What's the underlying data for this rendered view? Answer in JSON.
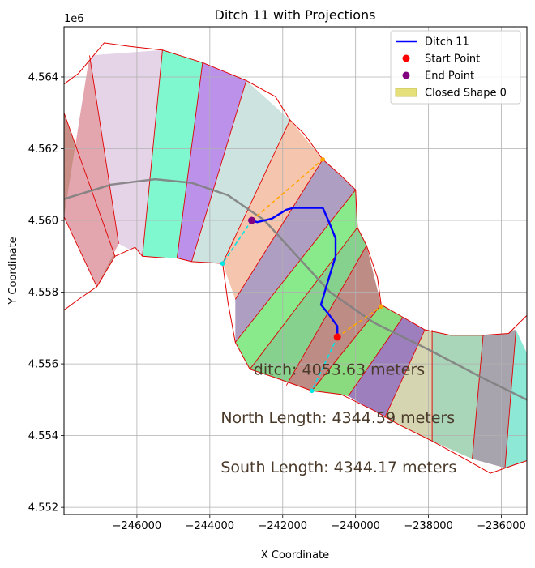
{
  "chart_data": {
    "type": "line",
    "title": "Ditch 11 with Projections",
    "xlabel": "X Coordinate",
    "ylabel": "Y Coordinate",
    "y_offset_label": "1e6",
    "xlim": [
      -248000,
      -235300
    ],
    "ylim": [
      4551800,
      4565400
    ],
    "grid": true,
    "legend_position": "top-right",
    "x_ticks": [
      {
        "value": -246000,
        "label": "−246000"
      },
      {
        "value": -244000,
        "label": "−244000"
      },
      {
        "value": -242000,
        "label": "−242000"
      },
      {
        "value": -240000,
        "label": "−240000"
      },
      {
        "value": -238000,
        "label": "−238000"
      },
      {
        "value": -236000,
        "label": "−236000"
      }
    ],
    "y_ticks": [
      {
        "value": 4552000,
        "label": "4.552"
      },
      {
        "value": 4554000,
        "label": "4.554"
      },
      {
        "value": 4556000,
        "label": "4.556"
      },
      {
        "value": 4558000,
        "label": "4.558"
      },
      {
        "value": 4560000,
        "label": "4.560"
      },
      {
        "value": 4562000,
        "label": "4.562"
      },
      {
        "value": 4564000,
        "label": "4.564"
      }
    ],
    "legend": [
      {
        "label": "Ditch 11",
        "kind": "line",
        "color": "#0000ff"
      },
      {
        "label": "Start Point",
        "kind": "dot",
        "color": "#ff0000"
      },
      {
        "label": "End Point",
        "kind": "dot",
        "color": "#800080"
      },
      {
        "label": "Closed Shape 0",
        "kind": "patch",
        "color": "#e5e07a"
      }
    ],
    "series": [
      {
        "name": "Ditch 11",
        "color": "#0000ff",
        "points": [
          [
            -242850,
            4560000
          ],
          [
            -242700,
            4559950
          ],
          [
            -242300,
            4560050
          ],
          [
            -241900,
            4560300
          ],
          [
            -241700,
            4560350
          ],
          [
            -241300,
            4560350
          ],
          [
            -240900,
            4560350
          ],
          [
            -240750,
            4560000
          ],
          [
            -240550,
            4559500
          ],
          [
            -240550,
            4559000
          ],
          [
            -240700,
            4558500
          ],
          [
            -240850,
            4558000
          ],
          [
            -240950,
            4557650
          ],
          [
            -240750,
            4557400
          ],
          [
            -240500,
            4557050
          ],
          [
            -240500,
            4556750
          ]
        ]
      }
    ],
    "centerline": {
      "color": "#808080",
      "points": [
        [
          -248000,
          4560600
        ],
        [
          -246700,
          4561000
        ],
        [
          -245500,
          4561150
        ],
        [
          -244500,
          4561050
        ],
        [
          -243500,
          4560700
        ],
        [
          -242500,
          4560000
        ],
        [
          -241600,
          4559000
        ],
        [
          -240700,
          4558000
        ],
        [
          -239500,
          4557150
        ],
        [
          -238000,
          4556400
        ],
        [
          -236500,
          4555600
        ],
        [
          -235300,
          4555000
        ]
      ]
    },
    "start_point": {
      "x": -240500,
      "y": 4556750,
      "color": "#ff0000"
    },
    "end_point": {
      "x": -242850,
      "y": 4560000,
      "color": "#800080"
    },
    "projections": [
      {
        "color": "#ffa500",
        "points": [
          [
            -242850,
            4560000
          ],
          [
            -240900,
            4561700
          ]
        ]
      },
      {
        "color": "#00e5e5",
        "points": [
          [
            -242850,
            4560000
          ],
          [
            -243650,
            4558800
          ]
        ]
      },
      {
        "color": "#ffa500",
        "points": [
          [
            -240500,
            4556750
          ],
          [
            -239300,
            4557600
          ]
        ]
      },
      {
        "color": "#00e5e5",
        "points": [
          [
            -240500,
            4556750
          ],
          [
            -241200,
            4555250
          ]
        ]
      }
    ],
    "closed_shape_outline": [
      [
        -248000,
        4563800
      ],
      [
        -247600,
        4564100
      ],
      [
        -246900,
        4564950
      ],
      [
        -246200,
        4564850
      ],
      [
        -245300,
        4564750
      ],
      [
        -244200,
        4564400
      ],
      [
        -243000,
        4563900
      ],
      [
        -242200,
        4563450
      ],
      [
        -241800,
        4562800
      ],
      [
        -241400,
        4562400
      ],
      [
        -240900,
        4561700
      ],
      [
        -240400,
        4561250
      ],
      [
        -240000,
        4560850
      ],
      [
        -239950,
        4559800
      ],
      [
        -239700,
        4559300
      ],
      [
        -239400,
        4558400
      ],
      [
        -239300,
        4557650
      ],
      [
        -238700,
        4557300
      ],
      [
        -238100,
        4556950
      ],
      [
        -237400,
        4556800
      ],
      [
        -236500,
        4556800
      ],
      [
        -235800,
        4556850
      ],
      [
        -235300,
        4557350
      ],
      [
        -235300,
        4553300
      ],
      [
        -235600,
        4553200
      ],
      [
        -236300,
        4552950
      ],
      [
        -237000,
        4553350
      ],
      [
        -237900,
        4553850
      ],
      [
        -238800,
        4554300
      ],
      [
        -239500,
        4554700
      ],
      [
        -240400,
        4555150
      ],
      [
        -241200,
        4555250
      ],
      [
        -242300,
        4555650
      ],
      [
        -242900,
        4555850
      ],
      [
        -243300,
        4556600
      ],
      [
        -243500,
        4557700
      ],
      [
        -243650,
        4558800
      ],
      [
        -244500,
        4558850
      ],
      [
        -244900,
        4558950
      ],
      [
        -245200,
        4558950
      ],
      [
        -245850,
        4559000
      ],
      [
        -246050,
        4559250
      ],
      [
        -246600,
        4559000
      ],
      [
        -247100,
        4558150
      ],
      [
        -247600,
        4557800
      ],
      [
        -248000,
        4557500
      ]
    ],
    "segment_dividers": [
      [
        [
          -248000,
          4563000
        ],
        [
          -246600,
          4559000
        ]
      ],
      [
        [
          -248000,
          4560100
        ],
        [
          -247100,
          4558150
        ]
      ],
      [
        [
          -247300,
          4564600
        ],
        [
          -246500,
          4559350
        ]
      ],
      [
        [
          -245300,
          4564750
        ],
        [
          -245850,
          4559000
        ]
      ],
      [
        [
          -244200,
          4564400
        ],
        [
          -244900,
          4558950
        ]
      ],
      [
        [
          -243000,
          4563900
        ],
        [
          -244500,
          4558850
        ]
      ],
      [
        [
          -241800,
          4562800
        ],
        [
          -243650,
          4558800
        ]
      ],
      [
        [
          -240900,
          4561700
        ],
        [
          -243300,
          4557800
        ]
      ],
      [
        [
          -240000,
          4560850
        ],
        [
          -243300,
          4556600
        ]
      ],
      [
        [
          -239950,
          4559800
        ],
        [
          -242900,
          4555850
        ]
      ],
      [
        [
          -239700,
          4559300
        ],
        [
          -241900,
          4555400
        ]
      ],
      [
        [
          -239300,
          4557650
        ],
        [
          -241200,
          4555250
        ]
      ],
      [
        [
          -238700,
          4557300
        ],
        [
          -240200,
          4555100
        ]
      ],
      [
        [
          -238100,
          4556950
        ],
        [
          -239200,
          4554500
        ]
      ],
      [
        [
          -237900,
          4556950
        ],
        [
          -237900,
          4553850
        ]
      ],
      [
        [
          -236500,
          4556800
        ],
        [
          -236800,
          4553350
        ]
      ],
      [
        [
          -235600,
          4556950
        ],
        [
          -235900,
          4553100
        ]
      ],
      [
        [
          -235300,
          4556300
        ],
        [
          -235300,
          4553300
        ]
      ]
    ],
    "segment_colors": [
      "#c98f87",
      "#e3a5ae",
      "#e5d3e7",
      "#7ff7cf",
      "#bc91ea",
      "#cde3df",
      "#f6c5ad",
      "#ae9ec1",
      "#88ea8a",
      "#86d18e",
      "#bd8c85",
      "#8ada80",
      "#9d7fbd",
      "#d5d5b1",
      "#a9d5b9",
      "#a8a4ae",
      "#8ee8d6"
    ],
    "annotations": [
      {
        "text": "ditch: 4053.63 meters",
        "x": -242800,
        "y": 4555700
      },
      {
        "text": "North Length: 4344.59 meters",
        "x": -243700,
        "y": 4554350
      },
      {
        "text": "South Length: 4344.17 meters",
        "x": -243700,
        "y": 4552980
      }
    ]
  }
}
